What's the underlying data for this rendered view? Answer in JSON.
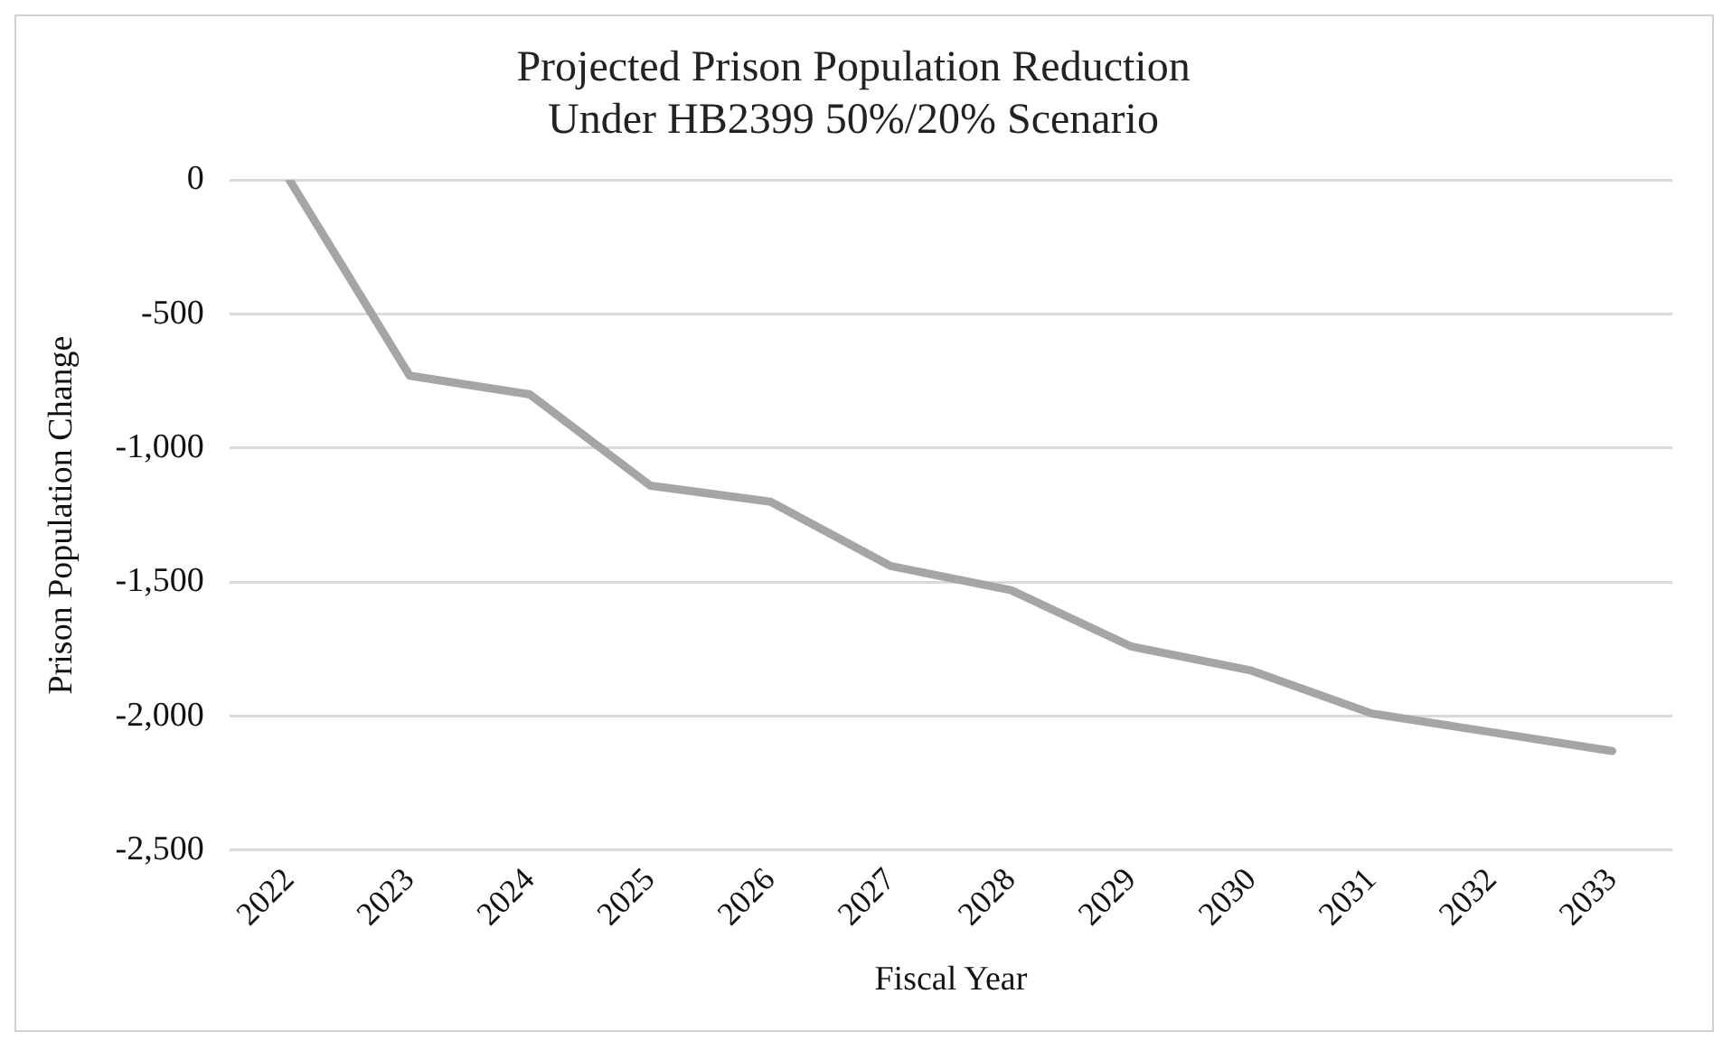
{
  "chart_data": {
    "type": "line",
    "title": "Projected Prison Population Reduction\nUnder HB2399 50%/20% Scenario",
    "xlabel": "Fiscal Year",
    "ylabel": "Prison Population Change",
    "categories": [
      "2022",
      "2023",
      "2024",
      "2025",
      "2026",
      "2027",
      "2028",
      "2029",
      "2030",
      "2031",
      "2032",
      "2033"
    ],
    "series": [
      {
        "color": "#a5a5a5",
        "values": [
          0,
          -730,
          -800,
          -1140,
          -1200,
          -1440,
          -1530,
          -1740,
          -1830,
          -1990,
          -2060,
          -2130
        ]
      }
    ],
    "ylim": [
      -2500,
      0
    ],
    "yticks": [
      {
        "value": -2500,
        "label": "-2,500"
      },
      {
        "value": -2000,
        "label": "-2,000"
      },
      {
        "value": -1500,
        "label": "-1,500"
      },
      {
        "value": -1000,
        "label": "-1,000"
      },
      {
        "value": -500,
        "label": "-500"
      },
      0
    ],
    "grid": "y",
    "legend": false,
    "marker": "none",
    "line_style": "solid"
  }
}
